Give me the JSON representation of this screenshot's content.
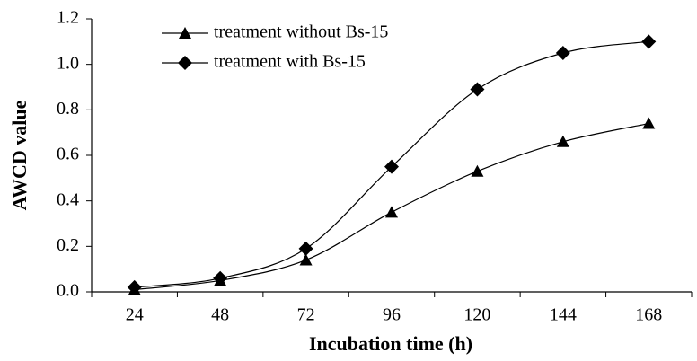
{
  "chart_data": {
    "type": "line",
    "x_label": "Incubation time (h)",
    "y_label": "AWCD value",
    "categories": [
      "24",
      "48",
      "72",
      "96",
      "120",
      "144",
      "168"
    ],
    "series": [
      {
        "name": "treatment without Bs-15",
        "color": "#000000",
        "marker": "triangle",
        "values": [
          0.01,
          0.05,
          0.14,
          0.35,
          0.53,
          0.66,
          0.74
        ]
      },
      {
        "name": "treatment with Bs-15",
        "color": "#000000",
        "marker": "diamond",
        "values": [
          0.02,
          0.06,
          0.19,
          0.55,
          0.89,
          1.05,
          1.1
        ]
      }
    ],
    "ylim": [
      0,
      1.2
    ],
    "yticks": [
      {
        "value": 0,
        "label": "0.0"
      },
      0.2,
      0.4,
      0.6,
      0.8,
      {
        "value": 1,
        "label": "1.0"
      },
      1.2
    ],
    "smooth": true,
    "grid": false,
    "legend": "top-left"
  }
}
